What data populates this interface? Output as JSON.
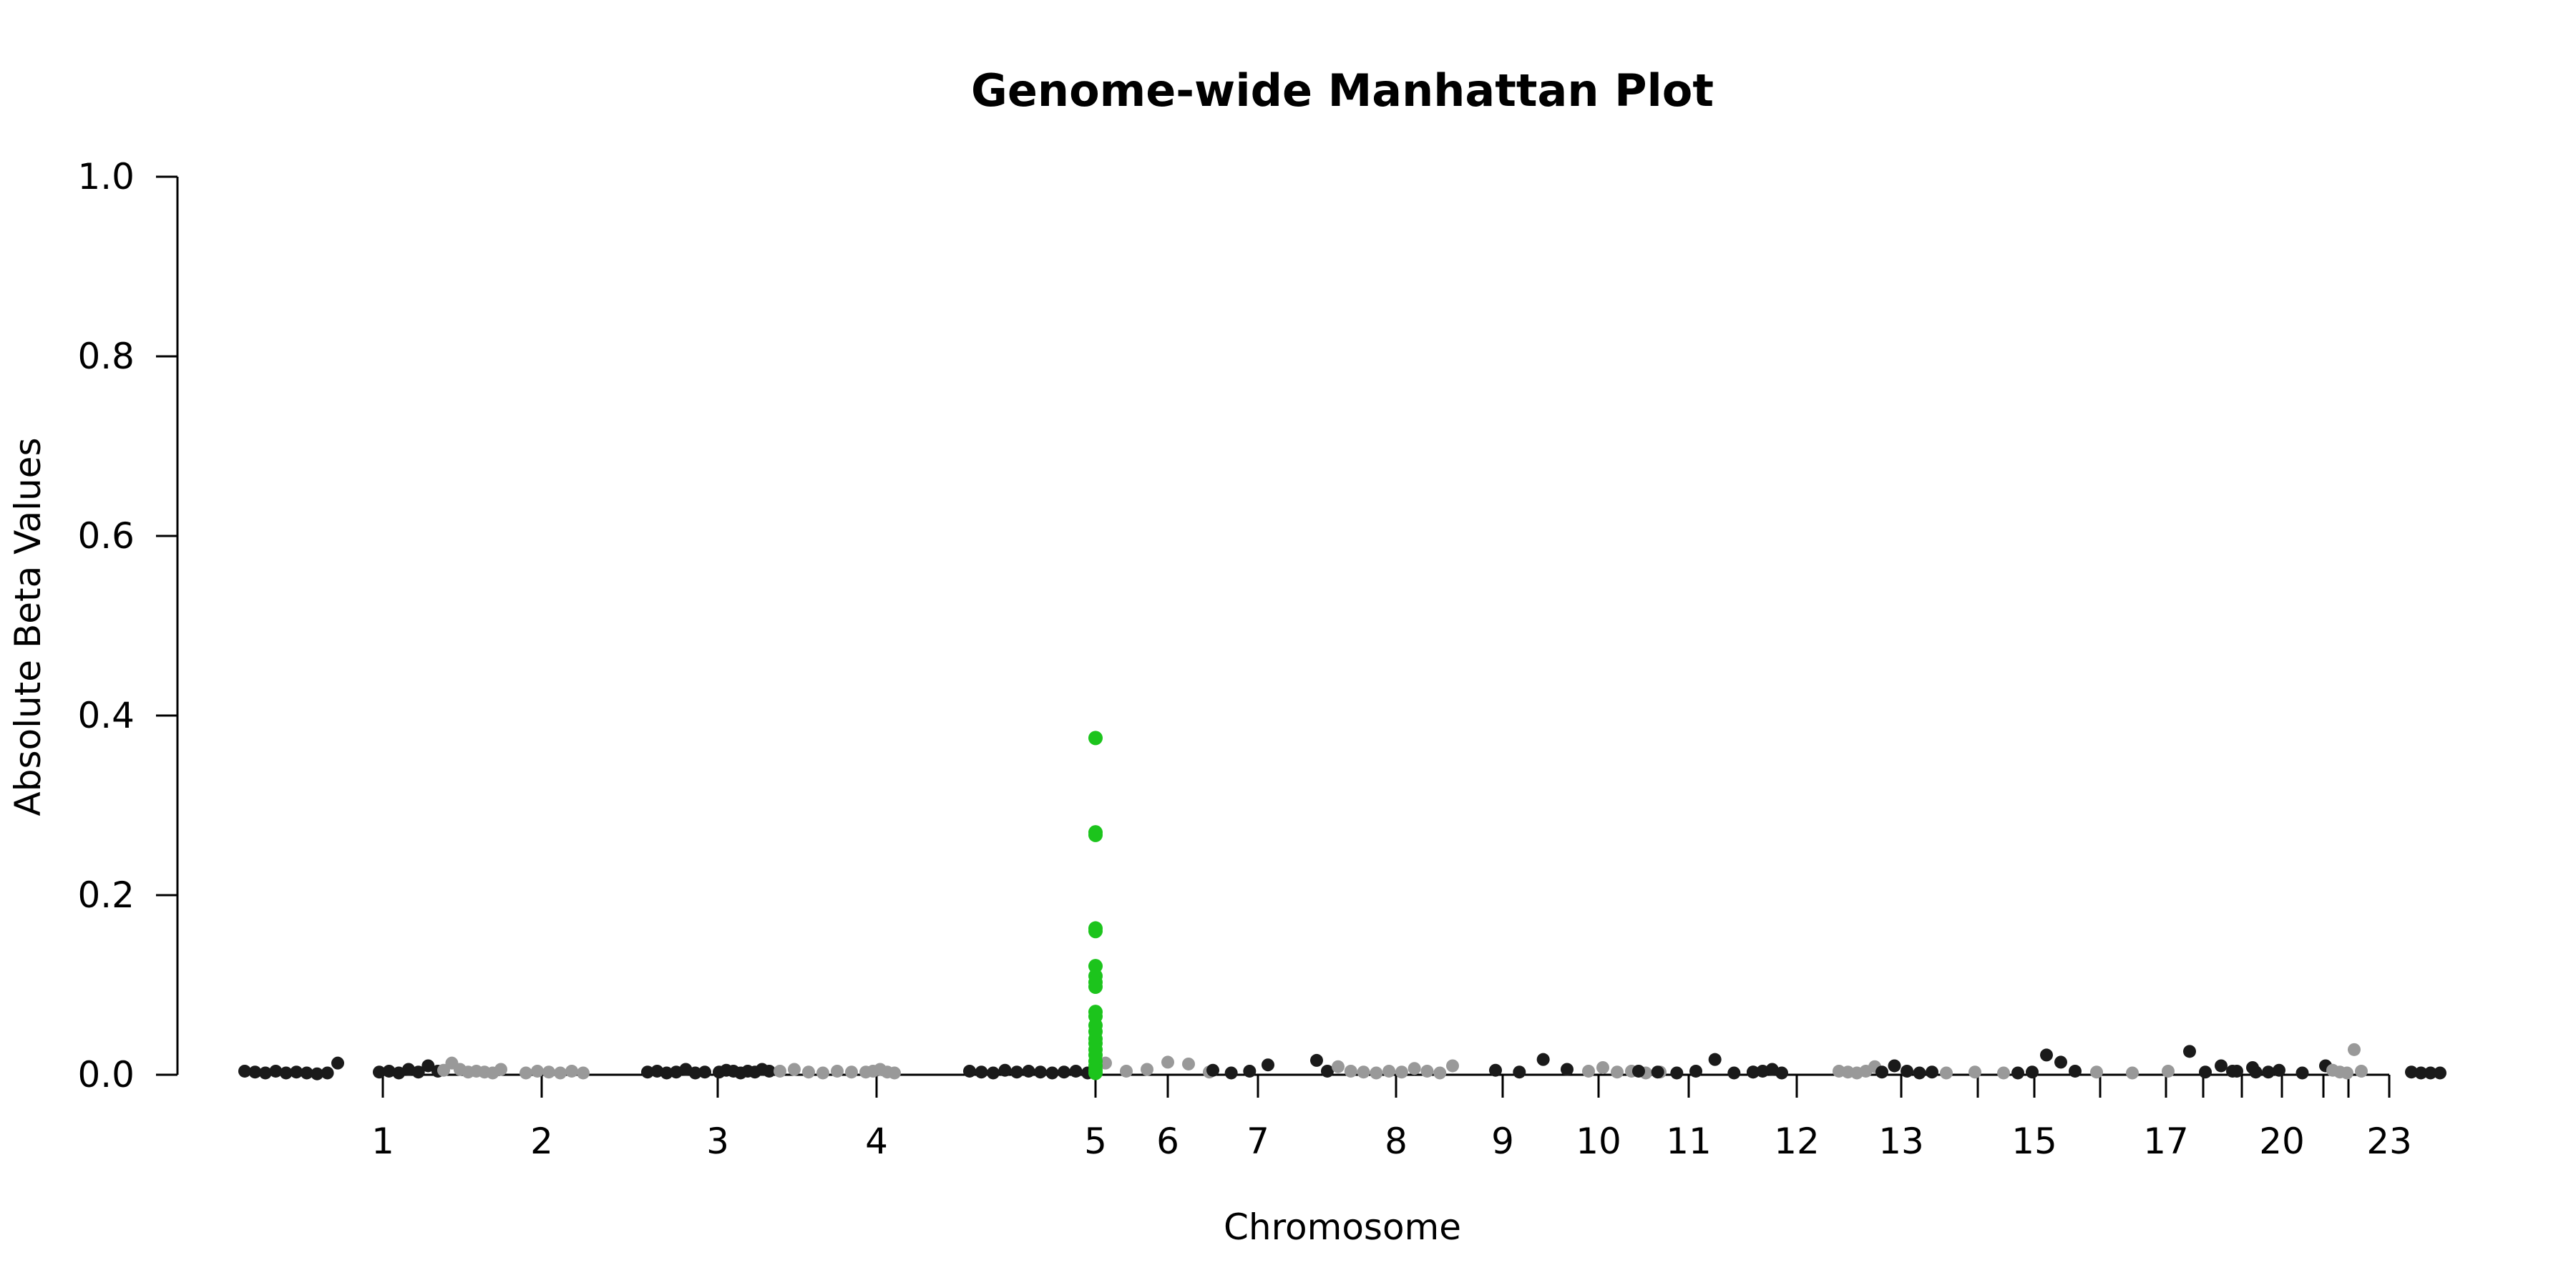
{
  "chart_data": {
    "type": "scatter",
    "title": "Genome-wide Manhattan Plot",
    "xlabel": "Chromosome",
    "ylabel": "Absolute Beta Values",
    "ylim": [
      0,
      1
    ],
    "yticks": [
      0.0,
      0.2,
      0.4,
      0.6,
      0.8,
      1.0
    ],
    "ytick_labels": [
      "0.0",
      "0.2",
      "0.4",
      "0.6",
      "0.8",
      "1.0"
    ],
    "grid": false,
    "legend": "none",
    "colors": {
      "dark": "#1a1a1a",
      "light": "#999999",
      "highlight": "#1cc41c"
    },
    "chromosome_tick_labels": [
      "1",
      "2",
      "3",
      "4",
      "5",
      "6",
      "7",
      "8",
      "9",
      "10",
      "11",
      "12",
      "13",
      "15",
      "17",
      "20",
      "23"
    ],
    "highlight": {
      "chromosome": "5",
      "values": [
        0.375,
        0.27,
        0.267,
        0.163,
        0.16,
        0.121,
        0.11,
        0.103,
        0.098,
        0.07,
        0.065,
        0.055,
        0.048,
        0.04,
        0.035,
        0.028,
        0.022,
        0.015,
        0.01,
        0.005,
        0.002
      ]
    },
    "background_points": [
      {
        "chr": "1",
        "color": "dark",
        "values": [
          0.004,
          0.003,
          0.002,
          0.004,
          0.002,
          0.003,
          0.002,
          0.001,
          0.002,
          0.013
        ]
      },
      {
        "chr": "1",
        "color": "dark",
        "values": [
          0.003,
          0.004,
          0.002,
          0.006,
          0.003,
          0.01,
          0.004
        ]
      },
      {
        "chr": "2",
        "color": "light",
        "values": [
          0.005,
          0.013,
          0.006,
          0.003,
          0.004,
          0.003,
          0.002,
          0.006
        ]
      },
      {
        "chr": "3",
        "color": "light",
        "values": [
          0.002,
          0.004,
          0.003,
          0.002,
          0.004,
          0.002
        ]
      },
      {
        "chr": "3",
        "color": "dark",
        "values": [
          0.003,
          0.004,
          0.002,
          0.003,
          0.006,
          0.002,
          0.003
        ]
      },
      {
        "chr": "4",
        "color": "dark",
        "values": [
          0.003,
          0.005,
          0.004,
          0.002,
          0.004,
          0.003,
          0.006,
          0.004
        ]
      },
      {
        "chr": "4",
        "color": "light",
        "values": [
          0.004,
          0.006,
          0.003,
          0.002,
          0.004,
          0.003
        ]
      },
      {
        "chr": "5",
        "color": "light",
        "values": [
          0.003,
          0.004,
          0.006,
          0.003,
          0.002
        ]
      },
      {
        "chr": "5",
        "color": "dark",
        "values": [
          0.004,
          0.003,
          0.002,
          0.005,
          0.003,
          0.004,
          0.003,
          0.002,
          0.003,
          0.004,
          0.002
        ]
      },
      {
        "chr": "6",
        "color": "light",
        "values": [
          0.013,
          0.004,
          0.006,
          0.014,
          0.012,
          0.003
        ]
      },
      {
        "chr": "7",
        "color": "dark",
        "values": [
          0.005,
          0.002,
          0.004,
          0.011
        ]
      },
      {
        "chr": "8",
        "color": "dark",
        "values": [
          0.016,
          0.004
        ]
      },
      {
        "chr": "8",
        "color": "light",
        "values": [
          0.009,
          0.004,
          0.003,
          0.002,
          0.004,
          0.003,
          0.007,
          0.004,
          0.002,
          0.01
        ]
      },
      {
        "chr": "9",
        "color": "dark",
        "values": [
          0.005,
          0.003,
          0.017,
          0.006
        ]
      },
      {
        "chr": "10",
        "color": "light",
        "values": [
          0.004,
          0.008,
          0.003,
          0.004,
          0.002,
          0.003
        ]
      },
      {
        "chr": "11",
        "color": "dark",
        "values": [
          0.004,
          0.003,
          0.002,
          0.004,
          0.017,
          0.002,
          0.003
        ]
      },
      {
        "chr": "12",
        "color": "dark",
        "values": [
          0.003,
          0.004,
          0.006,
          0.002
        ]
      },
      {
        "chr": "12",
        "color": "light",
        "values": [
          0.004,
          0.003,
          0.002,
          0.004,
          0.009
        ]
      },
      {
        "chr": "13",
        "color": "dark",
        "values": [
          0.003,
          0.01,
          0.004,
          0.002,
          0.003
        ]
      },
      {
        "chr": "15",
        "color": "light",
        "values": [
          0.002,
          0.003,
          0.002
        ]
      },
      {
        "chr": "15",
        "color": "dark",
        "values": [
          0.002,
          0.003,
          0.022,
          0.014,
          0.004
        ]
      },
      {
        "chr": "17",
        "color": "light",
        "values": [
          0.003,
          0.002,
          0.004
        ]
      },
      {
        "chr": "17",
        "color": "dark",
        "values": [
          0.026,
          0.003,
          0.01,
          0.004,
          0.008,
          0.003
        ]
      },
      {
        "chr": "20",
        "color": "dark",
        "values": [
          0.004,
          0.003,
          0.005,
          0.002,
          0.01
        ]
      },
      {
        "chr": "20",
        "color": "light",
        "values": [
          0.005,
          0.003,
          0.002,
          0.028,
          0.004
        ]
      },
      {
        "chr": "23",
        "color": "dark",
        "values": [
          0.003,
          0.002,
          0.002,
          0.002
        ]
      }
    ]
  }
}
